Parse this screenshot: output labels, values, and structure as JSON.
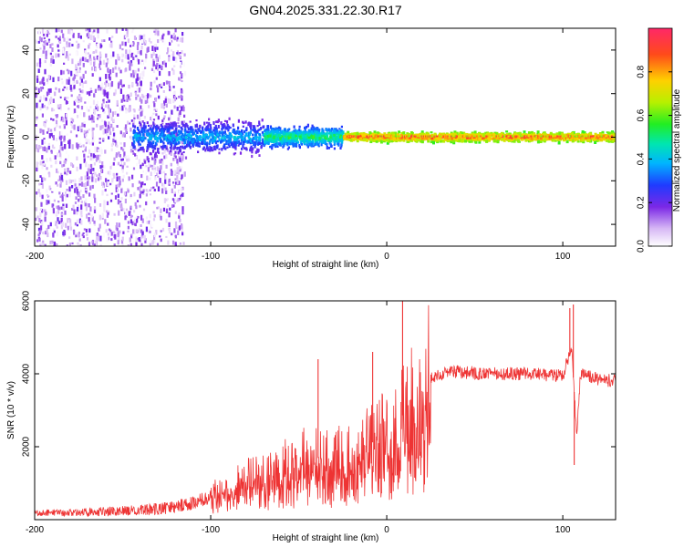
{
  "title": "GN04.2025.331.22.30.R17",
  "chart_data": [
    {
      "type": "heatmap",
      "title": "GN04.2025.331.22.30.R17",
      "xlabel": "Height of straight line (km)",
      "ylabel": "Frequency (Hz)",
      "xlim": [
        -200,
        130
      ],
      "ylim": [
        -50,
        50
      ],
      "xticks": [
        -200,
        -100,
        0,
        100
      ],
      "yticks": [
        -40,
        -20,
        0,
        20,
        40
      ],
      "colorbar": {
        "label": "Normalized spectral amplitude",
        "range": [
          0,
          1
        ],
        "ticks": [
          "0.0",
          "0.2",
          "0.4",
          "0.6",
          "0.8"
        ]
      },
      "description_bands": [
        {
          "x_range": [
            -200,
            -115
          ],
          "freq_spread_hz": 50,
          "amplitude": [
            0.0,
            0.2
          ]
        },
        {
          "x_range": [
            -145,
            -70
          ],
          "freq_spread_hz": 10,
          "amplitude": [
            0.15,
            0.45
          ]
        },
        {
          "x_range": [
            -70,
            -25
          ],
          "freq_spread_hz": 6,
          "amplitude": [
            0.25,
            0.6
          ]
        },
        {
          "x_range": [
            -25,
            130
          ],
          "freq_spread_hz": 3,
          "amplitude": [
            0.55,
            0.95
          ]
        }
      ]
    },
    {
      "type": "line",
      "xlabel": "Height of straight line (km)",
      "ylabel": "SNR (10 * v/v)",
      "xlim": [
        -200,
        130
      ],
      "ylim": [
        0,
        6000
      ],
      "xticks": [
        -200,
        -100,
        0,
        100
      ],
      "yticks": [
        2000,
        4000,
        6000
      ],
      "series": [
        {
          "name": "SNR",
          "color": "#ee3333",
          "x": [
            -200,
            -180,
            -160,
            -140,
            -120,
            -110,
            -100,
            -90,
            -80,
            -70,
            -60,
            -50,
            -40,
            -30,
            -20,
            -10,
            -5,
            0,
            5,
            10,
            15,
            20,
            30,
            40,
            60,
            80,
            100,
            105,
            108,
            110,
            120,
            130
          ],
          "y": [
            180,
            200,
            220,
            250,
            350,
            450,
            650,
            900,
            1100,
            1250,
            1400,
            1600,
            1700,
            1600,
            1900,
            2000,
            2300,
            2500,
            2700,
            2900,
            3300,
            3700,
            4000,
            4050,
            4000,
            4000,
            3950,
            4700,
            2300,
            4000,
            3850,
            3800
          ],
          "spikes": [
            {
              "x": 9,
              "y": 6000
            },
            {
              "x": 104,
              "y": 5800
            },
            {
              "x": 106,
              "y": 5900
            },
            {
              "x": 106.5,
              "y": 1500
            },
            {
              "x": -8,
              "y": 4600
            },
            {
              "x": -39,
              "y": 4400
            }
          ]
        }
      ]
    }
  ]
}
